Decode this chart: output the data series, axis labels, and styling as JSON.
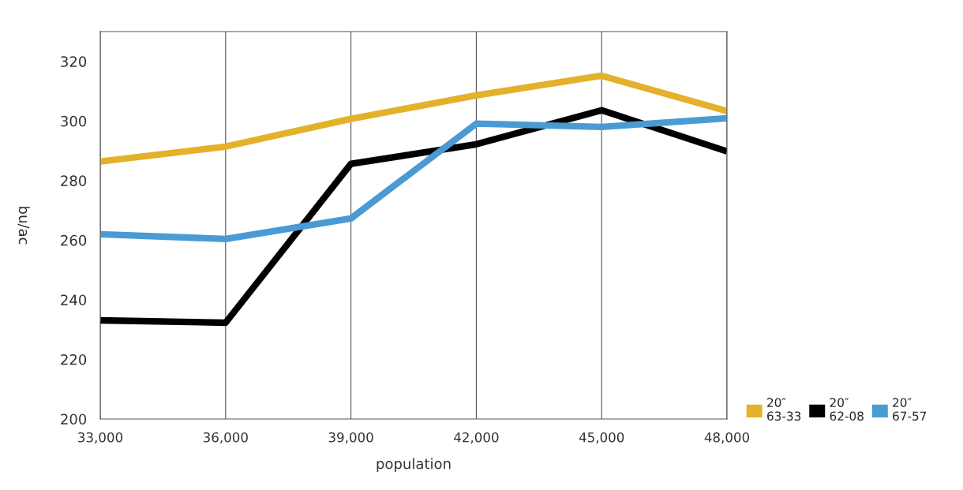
{
  "chart_data": {
    "type": "line",
    "xlabel": "population",
    "ylabel": "bu/ac",
    "categories": [
      "33,000",
      "36,000",
      "39,000",
      "42,000",
      "45,000",
      "48,000"
    ],
    "series": [
      {
        "name": "20″\n63-33",
        "color": "#e3b12a",
        "values": [
          286.4,
          291.4,
          300.7,
          308.6,
          315.2,
          303.3
        ]
      },
      {
        "name": "20″\n62-08",
        "color": "#000000",
        "values": [
          233.1,
          232.3,
          285.6,
          292.2,
          303.6,
          289.8
        ]
      },
      {
        "name": "20″\n67-57",
        "color": "#4a9bd3",
        "values": [
          262.0,
          260.4,
          267.3,
          299.1,
          298.0,
          300.9
        ]
      }
    ],
    "ylim": [
      200,
      330
    ],
    "yticks": [
      200,
      220,
      240,
      260,
      280,
      300,
      320
    ],
    "grid": "x",
    "legend": "bottom right",
    "marker": "none",
    "line_style": "solid"
  }
}
